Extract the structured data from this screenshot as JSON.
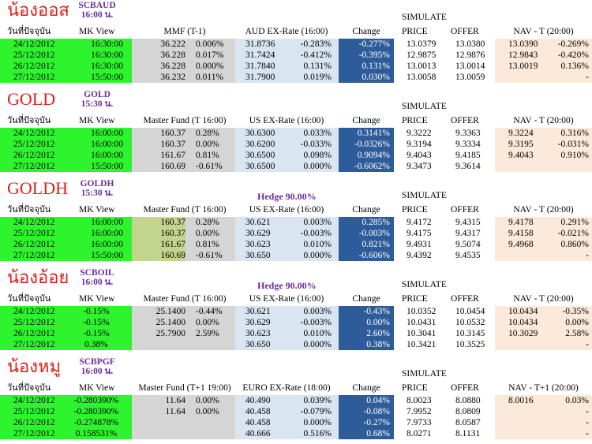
{
  "sections": [
    {
      "name": "น้องออส",
      "code": "SCBAUD",
      "time": "16:00 น.",
      "hedge": "",
      "headers": {
        "date": "วันที่ปัจจุบัน",
        "mk": "MK View",
        "fund": "MMF (T-1)",
        "ex": "AUD EX-Rate (16:00)",
        "chg": "Change",
        "sim": "SIMULATE",
        "price": "PRICE",
        "offer": "OFFER",
        "nav": "NAV - T (20:00)"
      },
      "rows": [
        {
          "date": "24/12/2012",
          "mk": "16:30:00",
          "fv": "36.222",
          "fp": "0.006%",
          "ev": "31.8736",
          "ep": "-0.283%",
          "chg": "-0.277%",
          "price": "13.0379",
          "offer": "13.0380",
          "nv": "13.0390",
          "np": "-0.269%"
        },
        {
          "date": "25/12/2012",
          "mk": "16:30:00",
          "fv": "36.228",
          "fp": "0.017%",
          "ev": "31.7424",
          "ep": "-0.412%",
          "chg": "-0.395%",
          "price": "12.9875",
          "offer": "12.9876",
          "nv": "12.9843",
          "np": "-0.420%"
        },
        {
          "date": "26/12/2012",
          "mk": "16:30:00",
          "fv": "36.228",
          "fp": "0.000%",
          "ev": "31.7840",
          "ep": "0.131%",
          "chg": "0.131%",
          "price": "13.0013",
          "offer": "13.0014",
          "nv": "13.0019",
          "np": "0.136%"
        },
        {
          "date": "27/12/2012",
          "mk": "15:50:00",
          "fv": "36.232",
          "fp": "0.011%",
          "ev": "31.7900",
          "ep": "0.019%",
          "chg": "0.030%",
          "price": "13.0058",
          "offer": "13.0059",
          "nv": "",
          "np": "-"
        }
      ]
    },
    {
      "name": "GOLD",
      "code": "GOLD",
      "time": "15:30 น.",
      "hedge": "",
      "headers": {
        "date": "วันที่ปัจจุบัน",
        "mk": "MK View",
        "fund": "Master Fund (T 16:00)",
        "ex": "US EX-Rate (16:00)",
        "chg": "Change",
        "sim": "SIMULATE",
        "price": "PRICE",
        "offer": "OFFER",
        "nav": "NAV - T (20:00)"
      },
      "rows": [
        {
          "date": "24/12/2012",
          "mk": "16:00:00",
          "fv": "160.37",
          "fp": "0.28%",
          "ev": "30.6300",
          "ep": "0.033%",
          "chg": "0.3141%",
          "price": "9.3222",
          "offer": "9.3363",
          "nv": "9.3224",
          "np": "0.316%"
        },
        {
          "date": "25/12/2012",
          "mk": "16:00:00",
          "fv": "160.37",
          "fp": "0.00%",
          "ev": "30.6200",
          "ep": "-0.033%",
          "chg": "-0.0326%",
          "price": "9.3194",
          "offer": "9.3334",
          "nv": "9.3195",
          "np": "-0.031%"
        },
        {
          "date": "26/12/2012",
          "mk": "16:00:00",
          "fv": "161.67",
          "fp": "0.81%",
          "ev": "30.6500",
          "ep": "0.098%",
          "chg": "0.9094%",
          "price": "9.4043",
          "offer": "9.4185",
          "nv": "9.4043",
          "np": "0.910%"
        },
        {
          "date": "27/12/2012",
          "mk": "15:50:00",
          "fv": "160.69",
          "fp": "-0.61%",
          "ev": "30.6500",
          "ep": "0.000%",
          "chg": "-0.6062%",
          "price": "9.3473",
          "offer": "9.3614",
          "nv": "",
          "np": ""
        }
      ]
    },
    {
      "name": "GOLDH",
      "code": "GOLDH",
      "time": "15:30 น.",
      "hedge": "Hedge 90.00%",
      "headers": {
        "date": "วันที่ปัจจุบัน",
        "mk": "MK View",
        "fund": "Master Fund (T 16:00)",
        "ex": "US EX-Rate (16:00)",
        "chg": "Change",
        "sim": "SIMULATE",
        "price": "PRICE",
        "offer": "OFFER",
        "nav": "NAV - T (20:00)"
      },
      "rows": [
        {
          "date": "24/12/2012",
          "mk": "16:00:00",
          "fv": "160.37",
          "fp": "0.28%",
          "ev": "30.621",
          "ep": "0.003%",
          "chg": "0.285%",
          "price": "9.4172",
          "offer": "9.4315",
          "nv": "9.4178",
          "np": "0.291%"
        },
        {
          "date": "25/12/2012",
          "mk": "16:00:00",
          "fv": "160.37",
          "fp": "0.00%",
          "ev": "30.629",
          "ep": "-0.003%",
          "chg": "-0.003%",
          "price": "9.4175",
          "offer": "9.4317",
          "nv": "9.4158",
          "np": "-0.021%"
        },
        {
          "date": "26/12/2012",
          "mk": "16:00:00",
          "fv": "161.67",
          "fp": "0.81%",
          "ev": "30.623",
          "ep": "0.010%",
          "chg": "0.821%",
          "price": "9.4931",
          "offer": "9.5074",
          "nv": "9.4968",
          "np": "0.860%"
        },
        {
          "date": "27/12/2012",
          "mk": "15:50:00",
          "fv": "160.69",
          "fp": "-0.61%",
          "ev": "30.650",
          "ep": "0.000%",
          "chg": "-0.606%",
          "price": "9.4392",
          "offer": "9.4535",
          "nv": "",
          "np": "-"
        }
      ]
    },
    {
      "name": "น้องอ้อย",
      "code": "SCBOIL",
      "time": "16:00 น.",
      "hedge": "Hedge 90.00%",
      "headers": {
        "date": "วันที่ปัจจุบัน",
        "mk": "MK View",
        "fund": "Master Fund (T 16:00)",
        "ex": "US EX-Rate (16:00)",
        "chg": "Change",
        "sim": "SIMULATE",
        "price": "PRICE",
        "offer": "OFFER",
        "nav": "NAV - T (20:00)"
      },
      "rows": [
        {
          "date": "24/12/2012",
          "mk": "-0.15%",
          "fv": "25.1400",
          "fp": "-0.44%",
          "ev": "30.621",
          "ep": "0.003%",
          "chg": "-0.43%",
          "price": "10.0352",
          "offer": "10.0454",
          "nv": "10.0434",
          "np": "-0.35%"
        },
        {
          "date": "25/12/2012",
          "mk": "-0.15%",
          "fv": "25.1400",
          "fp": "0.00%",
          "ev": "30.629",
          "ep": "-0.003%",
          "chg": "0.00%",
          "price": "10.0431",
          "offer": "10.0532",
          "nv": "10.0434",
          "np": "0.00%"
        },
        {
          "date": "26/12/2012",
          "mk": "-0.15%",
          "fv": "25.7900",
          "fp": "2.59%",
          "ev": "30.623",
          "ep": "0.010%",
          "chg": "2.60%",
          "price": "10.3041",
          "offer": "10.3145",
          "nv": "10.3029",
          "np": "2.58%"
        },
        {
          "date": "27/12/2012",
          "mk": "0.38%",
          "fv": "",
          "fp": "",
          "ev": "30.650",
          "ep": "0.000%",
          "chg": "0.38%",
          "price": "10.3421",
          "offer": "10.3525",
          "nv": "",
          "np": "-"
        }
      ]
    },
    {
      "name": "น้องหมู",
      "code": "SCBPGF",
      "time": "16:00 น.",
      "hedge": "",
      "headers": {
        "date": "วันที่ปัจจุบัน",
        "mk": "MK View",
        "fund": "Master Fund (T+1 19:00)",
        "ex": "EURO EX-Rate (18:00)",
        "chg": "Change",
        "sim": "SIMULATE",
        "price": "PRICE",
        "offer": "OFFER",
        "nav": "NAV - T+1 (20:00)"
      },
      "rows": [
        {
          "date": "24/12/2012",
          "mk": "-0.280390%",
          "fv": "11.64",
          "fp": "0.00%",
          "ev": "40.490",
          "ep": "0.039%",
          "chg": "0.04%",
          "price": "8.0023",
          "offer": "8.0880",
          "nv": "8.0016",
          "np": "0.03%"
        },
        {
          "date": "25/12/2012",
          "mk": "-0.280390%",
          "fv": "11.64",
          "fp": "0.00%",
          "ev": "40.458",
          "ep": "-0.079%",
          "chg": "-0.08%",
          "price": "7.9952",
          "offer": "8.0809",
          "nv": "",
          "np": "-"
        },
        {
          "date": "26/12/2012",
          "mk": "-0.274878%",
          "fv": "",
          "fp": "",
          "ev": "40.458",
          "ep": "0.000%",
          "chg": "-0.27%",
          "price": "7.9733",
          "offer": "8.0587",
          "nv": "",
          "np": "-"
        },
        {
          "date": "27/12/2012",
          "mk": "0.158531%",
          "fv": "",
          "fp": "",
          "ev": "40.666",
          "ep": "0.516%",
          "chg": "0.68%",
          "price": "8.0271",
          "offer": "8.1131",
          "nv": "",
          "np": "-"
        }
      ]
    }
  ]
}
